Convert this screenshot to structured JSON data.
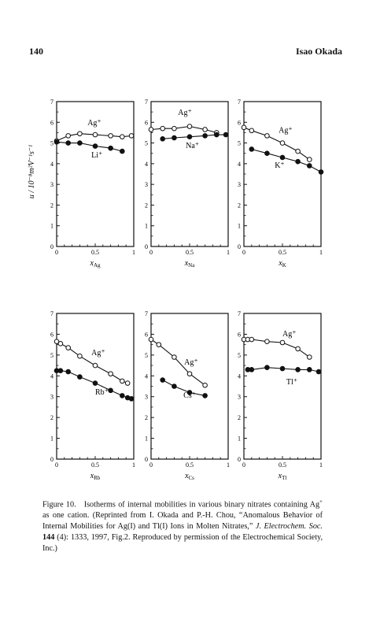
{
  "header": {
    "page_number": "140",
    "running_head": "Isao Okada"
  },
  "figure": {
    "y_axis_label": "u / 10⁻⁸m²V⁻¹s⁻¹",
    "panels": [
      {
        "id": "Li",
        "x_label": "x",
        "x_label_sub": "Ag",
        "ag_label": "Ag⁺",
        "ion_label": "Li⁺",
        "x_ticks": [
          "0",
          "0.5",
          "1"
        ],
        "y_ticks": [
          "0",
          "1",
          "2",
          "3",
          "4",
          "5",
          "6",
          "7"
        ],
        "ag_series": [
          [
            0,
            5.1
          ],
          [
            0.15,
            5.35
          ],
          [
            0.3,
            5.45
          ],
          [
            0.5,
            5.4
          ],
          [
            0.7,
            5.35
          ],
          [
            0.85,
            5.3
          ],
          [
            0.97,
            5.35
          ]
        ],
        "ion_series": [
          [
            0,
            5.05
          ],
          [
            0.15,
            5.0
          ],
          [
            0.3,
            5.0
          ],
          [
            0.5,
            4.85
          ],
          [
            0.7,
            4.75
          ],
          [
            0.85,
            4.6
          ]
        ]
      },
      {
        "id": "Na",
        "x_label": "x",
        "x_label_sub": "Na",
        "ag_label": "Ag⁺",
        "ion_label": "Na⁺",
        "x_ticks": [
          "0",
          "0.5",
          "1"
        ],
        "y_ticks": [
          "0",
          "1",
          "2",
          "3",
          "4",
          "5",
          "6",
          "7"
        ],
        "ag_series": [
          [
            0,
            5.65
          ],
          [
            0.15,
            5.7
          ],
          [
            0.3,
            5.7
          ],
          [
            0.5,
            5.8
          ],
          [
            0.7,
            5.65
          ],
          [
            0.85,
            5.5
          ]
        ],
        "ion_series": [
          [
            0.15,
            5.2
          ],
          [
            0.3,
            5.25
          ],
          [
            0.5,
            5.3
          ],
          [
            0.7,
            5.35
          ],
          [
            0.85,
            5.4
          ],
          [
            0.97,
            5.4
          ]
        ]
      },
      {
        "id": "K",
        "x_label": "x",
        "x_label_sub": "K",
        "ag_label": "Ag⁺",
        "ion_label": "K⁺",
        "x_ticks": [
          "0",
          "0.5",
          "1"
        ],
        "y_ticks": [
          "0",
          "1",
          "2",
          "3",
          "4",
          "5",
          "6",
          "7"
        ],
        "ag_series": [
          [
            0,
            5.75
          ],
          [
            0.1,
            5.6
          ],
          [
            0.3,
            5.35
          ],
          [
            0.5,
            5.0
          ],
          [
            0.7,
            4.6
          ],
          [
            0.85,
            4.2
          ]
        ],
        "ion_series": [
          [
            0.1,
            4.7
          ],
          [
            0.3,
            4.5
          ],
          [
            0.5,
            4.3
          ],
          [
            0.7,
            4.1
          ],
          [
            0.85,
            3.9
          ],
          [
            1.0,
            3.6
          ]
        ]
      },
      {
        "id": "Rb",
        "x_label": "x",
        "x_label_sub": "Rb",
        "ag_label": "Ag⁺",
        "ion_label": "Rb⁺",
        "x_ticks": [
          "0",
          "0.5",
          "1"
        ],
        "y_ticks": [
          "0",
          "1",
          "2",
          "3",
          "4",
          "5",
          "6",
          "7"
        ],
        "ag_series": [
          [
            0,
            5.65
          ],
          [
            0.05,
            5.55
          ],
          [
            0.15,
            5.35
          ],
          [
            0.3,
            4.95
          ],
          [
            0.5,
            4.5
          ],
          [
            0.7,
            4.1
          ],
          [
            0.85,
            3.75
          ],
          [
            0.92,
            3.65
          ]
        ],
        "ion_series": [
          [
            0,
            4.25
          ],
          [
            0.05,
            4.25
          ],
          [
            0.15,
            4.2
          ],
          [
            0.3,
            3.95
          ],
          [
            0.5,
            3.65
          ],
          [
            0.7,
            3.3
          ],
          [
            0.85,
            3.05
          ],
          [
            0.92,
            2.95
          ],
          [
            0.97,
            2.9
          ]
        ]
      },
      {
        "id": "Cs",
        "x_label": "x",
        "x_label_sub": "Cs",
        "ag_label": "Ag⁺",
        "ion_label": "Cs⁺",
        "x_ticks": [
          "0",
          "0.5",
          "1"
        ],
        "y_ticks": [
          "0",
          "1",
          "2",
          "3",
          "4",
          "5",
          "6",
          "7"
        ],
        "ag_series": [
          [
            0,
            5.75
          ],
          [
            0.1,
            5.5
          ],
          [
            0.3,
            4.9
          ],
          [
            0.5,
            4.1
          ],
          [
            0.7,
            3.55
          ]
        ],
        "ion_series": [
          [
            0.15,
            3.8
          ],
          [
            0.3,
            3.5
          ],
          [
            0.5,
            3.2
          ],
          [
            0.7,
            3.05
          ]
        ]
      },
      {
        "id": "Tl",
        "x_label": "x",
        "x_label_sub": "Tl",
        "ag_label": "Ag⁺",
        "ion_label": "Tl⁺",
        "x_ticks": [
          "0",
          "0.5",
          "1"
        ],
        "y_ticks": [
          "0",
          "1",
          "2",
          "3",
          "4",
          "5",
          "6",
          "7"
        ],
        "ag_series": [
          [
            0,
            5.75
          ],
          [
            0.05,
            5.75
          ],
          [
            0.1,
            5.75
          ],
          [
            0.3,
            5.65
          ],
          [
            0.5,
            5.6
          ],
          [
            0.7,
            5.3
          ],
          [
            0.85,
            4.9
          ]
        ],
        "ion_series": [
          [
            0.05,
            4.3
          ],
          [
            0.1,
            4.3
          ],
          [
            0.3,
            4.4
          ],
          [
            0.5,
            4.35
          ],
          [
            0.7,
            4.3
          ],
          [
            0.85,
            4.3
          ],
          [
            0.97,
            4.2
          ]
        ]
      }
    ]
  },
  "chart_data": [
    {
      "type": "line",
      "ylabel": "u / 10⁻⁸m²V⁻¹s⁻¹",
      "xlabel": "xAg",
      "xlim": [
        0,
        1
      ],
      "ylim": [
        0,
        7
      ],
      "series": [
        {
          "name": "Ag⁺",
          "x": [
            0,
            0.15,
            0.3,
            0.5,
            0.7,
            0.85,
            0.97
          ],
          "values": [
            5.1,
            5.35,
            5.45,
            5.4,
            5.35,
            5.3,
            5.35
          ]
        },
        {
          "name": "Li⁺",
          "x": [
            0,
            0.15,
            0.3,
            0.5,
            0.7,
            0.85
          ],
          "values": [
            5.05,
            5.0,
            5.0,
            4.85,
            4.75,
            4.6
          ]
        }
      ]
    },
    {
      "type": "line",
      "xlabel": "xNa",
      "xlim": [
        0,
        1
      ],
      "ylim": [
        0,
        7
      ],
      "series": [
        {
          "name": "Ag⁺",
          "x": [
            0,
            0.15,
            0.3,
            0.5,
            0.7,
            0.85
          ],
          "values": [
            5.65,
            5.7,
            5.7,
            5.8,
            5.65,
            5.5
          ]
        },
        {
          "name": "Na⁺",
          "x": [
            0.15,
            0.3,
            0.5,
            0.7,
            0.85,
            0.97
          ],
          "values": [
            5.2,
            5.25,
            5.3,
            5.35,
            5.4,
            5.4
          ]
        }
      ]
    },
    {
      "type": "line",
      "xlabel": "xK",
      "xlim": [
        0,
        1
      ],
      "ylim": [
        0,
        7
      ],
      "series": [
        {
          "name": "Ag⁺",
          "x": [
            0,
            0.1,
            0.3,
            0.5,
            0.7,
            0.85
          ],
          "values": [
            5.75,
            5.6,
            5.35,
            5.0,
            4.6,
            4.2
          ]
        },
        {
          "name": "K⁺",
          "x": [
            0.1,
            0.3,
            0.5,
            0.7,
            0.85,
            1.0
          ],
          "values": [
            4.7,
            4.5,
            4.3,
            4.1,
            3.9,
            3.6
          ]
        }
      ]
    },
    {
      "type": "line",
      "xlabel": "xRb",
      "xlim": [
        0,
        1
      ],
      "ylim": [
        0,
        7
      ],
      "series": [
        {
          "name": "Ag⁺",
          "x": [
            0,
            0.05,
            0.15,
            0.3,
            0.5,
            0.7,
            0.85,
            0.92
          ],
          "values": [
            5.65,
            5.55,
            5.35,
            4.95,
            4.5,
            4.1,
            3.75,
            3.65
          ]
        },
        {
          "name": "Rb⁺",
          "x": [
            0,
            0.05,
            0.15,
            0.3,
            0.5,
            0.7,
            0.85,
            0.92,
            0.97
          ],
          "values": [
            4.25,
            4.25,
            4.2,
            3.95,
            3.65,
            3.3,
            3.05,
            2.95,
            2.9
          ]
        }
      ]
    },
    {
      "type": "line",
      "xlabel": "xCs",
      "xlim": [
        0,
        1
      ],
      "ylim": [
        0,
        7
      ],
      "series": [
        {
          "name": "Ag⁺",
          "x": [
            0,
            0.1,
            0.3,
            0.5,
            0.7
          ],
          "values": [
            5.75,
            5.5,
            4.9,
            4.1,
            3.55
          ]
        },
        {
          "name": "Cs⁺",
          "x": [
            0.15,
            0.3,
            0.5,
            0.7
          ],
          "values": [
            3.8,
            3.5,
            3.2,
            3.05
          ]
        }
      ]
    },
    {
      "type": "line",
      "xlabel": "xTl",
      "xlim": [
        0,
        1
      ],
      "ylim": [
        0,
        7
      ],
      "series": [
        {
          "name": "Ag⁺",
          "x": [
            0,
            0.05,
            0.1,
            0.3,
            0.5,
            0.7,
            0.85
          ],
          "values": [
            5.75,
            5.75,
            5.75,
            5.65,
            5.6,
            5.3,
            4.9
          ]
        },
        {
          "name": "Tl⁺",
          "x": [
            0.05,
            0.1,
            0.3,
            0.5,
            0.7,
            0.85,
            0.97
          ],
          "values": [
            4.3,
            4.3,
            4.4,
            4.35,
            4.3,
            4.3,
            4.2
          ]
        }
      ]
    }
  ],
  "caption": {
    "label": "Figure 10.",
    "text_1": "Isotherms of internal mobilities in various binary nitrates containing Ag",
    "text_1_sup": "+",
    "text_2": "as one cation. (Reprinted from I. Okada and P.-H. Chou, “Anomalous Behavior of Internal Mobilities for Ag(I) and Tl(I) Ions in Molten Nitrates,”",
    "journal": "J. Electrochem. Soc.",
    "volume": "144",
    "text_3": "(4): 1333, 1997, Fig.2. Reproduced by permission of the Electrochemical Society, Inc.)"
  }
}
